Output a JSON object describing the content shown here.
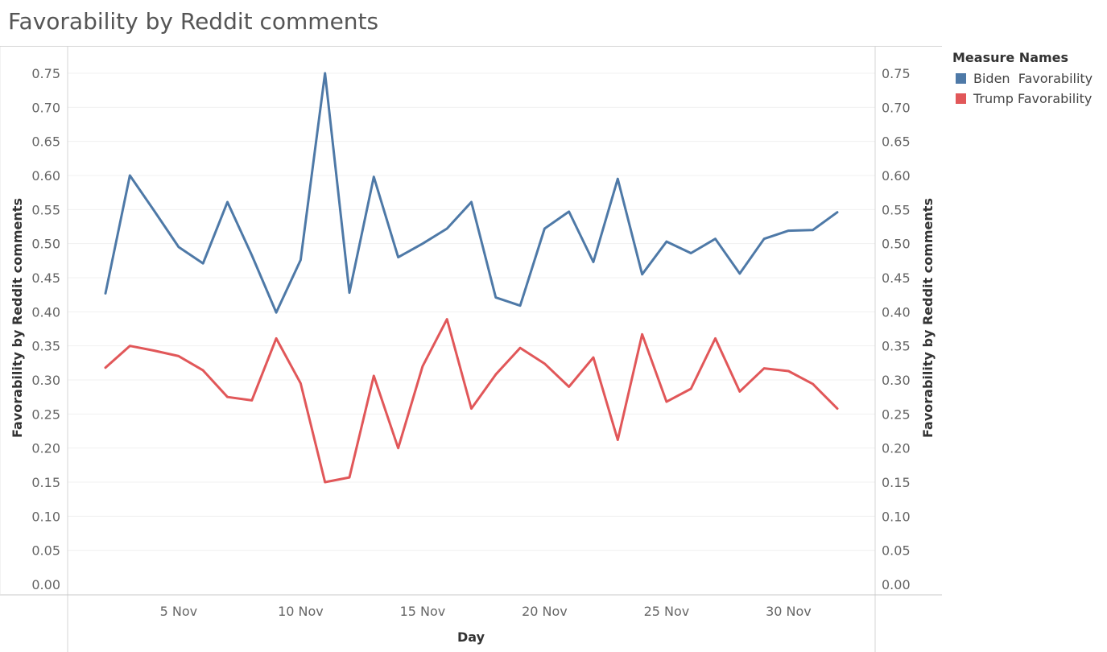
{
  "page": {
    "title": "Favorability by Reddit comments"
  },
  "legend": {
    "title": "Measure Names",
    "items": [
      {
        "label": "Biden  Favorability",
        "color": "#4e79a7"
      },
      {
        "label": "Trump Favorability",
        "color": "#e15759"
      }
    ]
  },
  "chart_data": {
    "type": "line",
    "title": "Favorability by Reddit comments",
    "xlabel": "Day",
    "ylabel": "Favorability by Reddit comments",
    "ylabel_right": "Favorability by Reddit comments",
    "x": [
      "2 Nov",
      "3 Nov",
      "4 Nov",
      "5 Nov",
      "6 Nov",
      "7 Nov",
      "8 Nov",
      "9 Nov",
      "10 Nov",
      "11 Nov",
      "12 Nov",
      "13 Nov",
      "14 Nov",
      "15 Nov",
      "16 Nov",
      "17 Nov",
      "18 Nov",
      "19 Nov",
      "20 Nov",
      "21 Nov",
      "22 Nov",
      "23 Nov",
      "24 Nov",
      "25 Nov",
      "26 Nov",
      "27 Nov",
      "28 Nov",
      "29 Nov",
      "30 Nov",
      "1 Dec",
      "2 Dec"
    ],
    "x_tick_labels": [
      "5 Nov",
      "10 Nov",
      "15 Nov",
      "20 Nov",
      "25 Nov",
      "30 Nov"
    ],
    "y_ticks": [
      "0.00",
      "0.05",
      "0.10",
      "0.15",
      "0.20",
      "0.25",
      "0.30",
      "0.35",
      "0.40",
      "0.45",
      "0.50",
      "0.55",
      "0.60",
      "0.65",
      "0.70",
      "0.75"
    ],
    "ylim": [
      0,
      0.78
    ],
    "grid": true,
    "legend_position": "right",
    "series": [
      {
        "name": "Biden  Favorability",
        "color": "#4e79a7",
        "values": [
          0.427,
          0.6,
          0.548,
          0.495,
          0.471,
          0.561,
          0.483,
          0.399,
          0.476,
          0.75,
          0.428,
          0.598,
          0.48,
          0.5,
          0.522,
          0.561,
          0.421,
          0.409,
          0.522,
          0.547,
          0.473,
          0.595,
          0.455,
          0.503,
          0.486,
          0.507,
          0.456,
          0.507,
          0.519,
          0.52,
          0.546
        ]
      },
      {
        "name": "Trump Favorability",
        "color": "#e15759",
        "values": [
          0.318,
          0.35,
          0.343,
          0.335,
          0.314,
          0.275,
          0.27,
          0.361,
          0.295,
          0.15,
          0.157,
          0.306,
          0.2,
          0.32,
          0.389,
          0.258,
          0.308,
          0.347,
          0.324,
          0.29,
          0.333,
          0.212,
          0.367,
          0.268,
          0.287,
          0.361,
          0.283,
          0.317,
          0.313,
          0.294,
          0.258
        ]
      }
    ]
  }
}
